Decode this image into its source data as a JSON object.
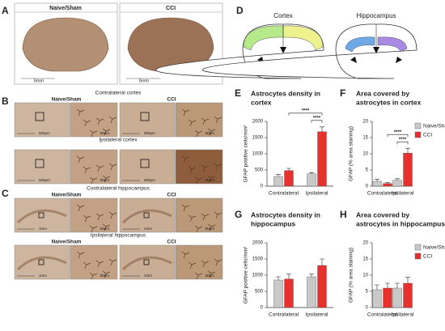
{
  "figure": {
    "panel_letters": [
      "A",
      "B",
      "C",
      "D"
    ],
    "groups": [
      "Naive/Sham",
      "CCI"
    ],
    "scale_labels": [
      "5mm",
      "500μm",
      "50μm",
      "1mm"
    ],
    "regions": [
      "Contralateral cortex",
      "Ipsilateral cortex",
      "Contralateral hippocampus",
      "Ipsilateral hippocampus"
    ],
    "schematic_labels": [
      "Cortex",
      "Hippocampus"
    ]
  },
  "chart_data": [
    {
      "type": "bar",
      "panel": "E",
      "title": [
        "Astrocytes density in",
        "cortex"
      ],
      "ylabel": "GFAP positive cells/mm²",
      "categories": [
        "Contralateral",
        "Ipsilateral"
      ],
      "series": [
        {
          "name": "Naive/Sham",
          "color": "#c9c9c9",
          "values": [
            300,
            380
          ],
          "errors": [
            60,
            40
          ]
        },
        {
          "name": "CCI",
          "color": "#e8312f",
          "values": [
            480,
            1680
          ],
          "errors": [
            70,
            150
          ]
        }
      ],
      "ylim": [
        0,
        2000
      ],
      "yticks": [
        0,
        500,
        1000,
        1500,
        2000
      ],
      "annotations": [
        "****",
        "****"
      ],
      "legend": false
    },
    {
      "type": "bar",
      "panel": "F",
      "title": [
        "Area covered by",
        "astrocytes in cortex"
      ],
      "ylabel": "GFAP (% area staining)",
      "categories": [
        "Contralateral",
        "Ipsilateral"
      ],
      "series": [
        {
          "name": "Naive/Sham",
          "color": "#c9c9c9",
          "values": [
            1.5,
            1.8
          ],
          "errors": [
            0.6,
            0.5
          ]
        },
        {
          "name": "CCI",
          "color": "#e8312f",
          "values": [
            0.8,
            10.2
          ],
          "errors": [
            0.3,
            1.5
          ]
        }
      ],
      "ylim": [
        0,
        20
      ],
      "yticks": [
        0,
        5,
        10,
        15,
        20
      ],
      "annotations": [
        "****",
        "****"
      ],
      "legend": "right"
    },
    {
      "type": "bar",
      "panel": "G",
      "title": [
        "Astrocytes density in",
        "hippocampus"
      ],
      "ylabel": "GFAP positive cells/mm²",
      "categories": [
        "Contralateral",
        "Ipsilateral"
      ],
      "series": [
        {
          "name": "Naive/Sham",
          "color": "#c9c9c9",
          "values": [
            850,
            950
          ],
          "errors": [
            100,
            80
          ]
        },
        {
          "name": "CCI",
          "color": "#e8312f",
          "values": [
            880,
            1300
          ],
          "errors": [
            150,
            200
          ]
        }
      ],
      "ylim": [
        0,
        2000
      ],
      "yticks": [
        0,
        500,
        1000,
        1500,
        2000
      ],
      "legend": false
    },
    {
      "type": "bar",
      "panel": "H",
      "title": [
        "Area covered by",
        "astrocytes in hippocampus"
      ],
      "ylabel": "GFAP (% area staining)",
      "categories": [
        "Contralateral",
        "Ipsilateral"
      ],
      "series": [
        {
          "name": "Naive/Sham",
          "color": "#c9c9c9",
          "values": [
            5.5,
            6
          ],
          "errors": [
            1.5,
            1.5
          ]
        },
        {
          "name": "CCI",
          "color": "#e8312f",
          "values": [
            6,
            7.5
          ],
          "errors": [
            1.5,
            1.8
          ]
        }
      ],
      "ylim": [
        0,
        20
      ],
      "yticks": [
        0,
        5,
        10,
        15,
        20
      ],
      "legend": "right"
    }
  ]
}
